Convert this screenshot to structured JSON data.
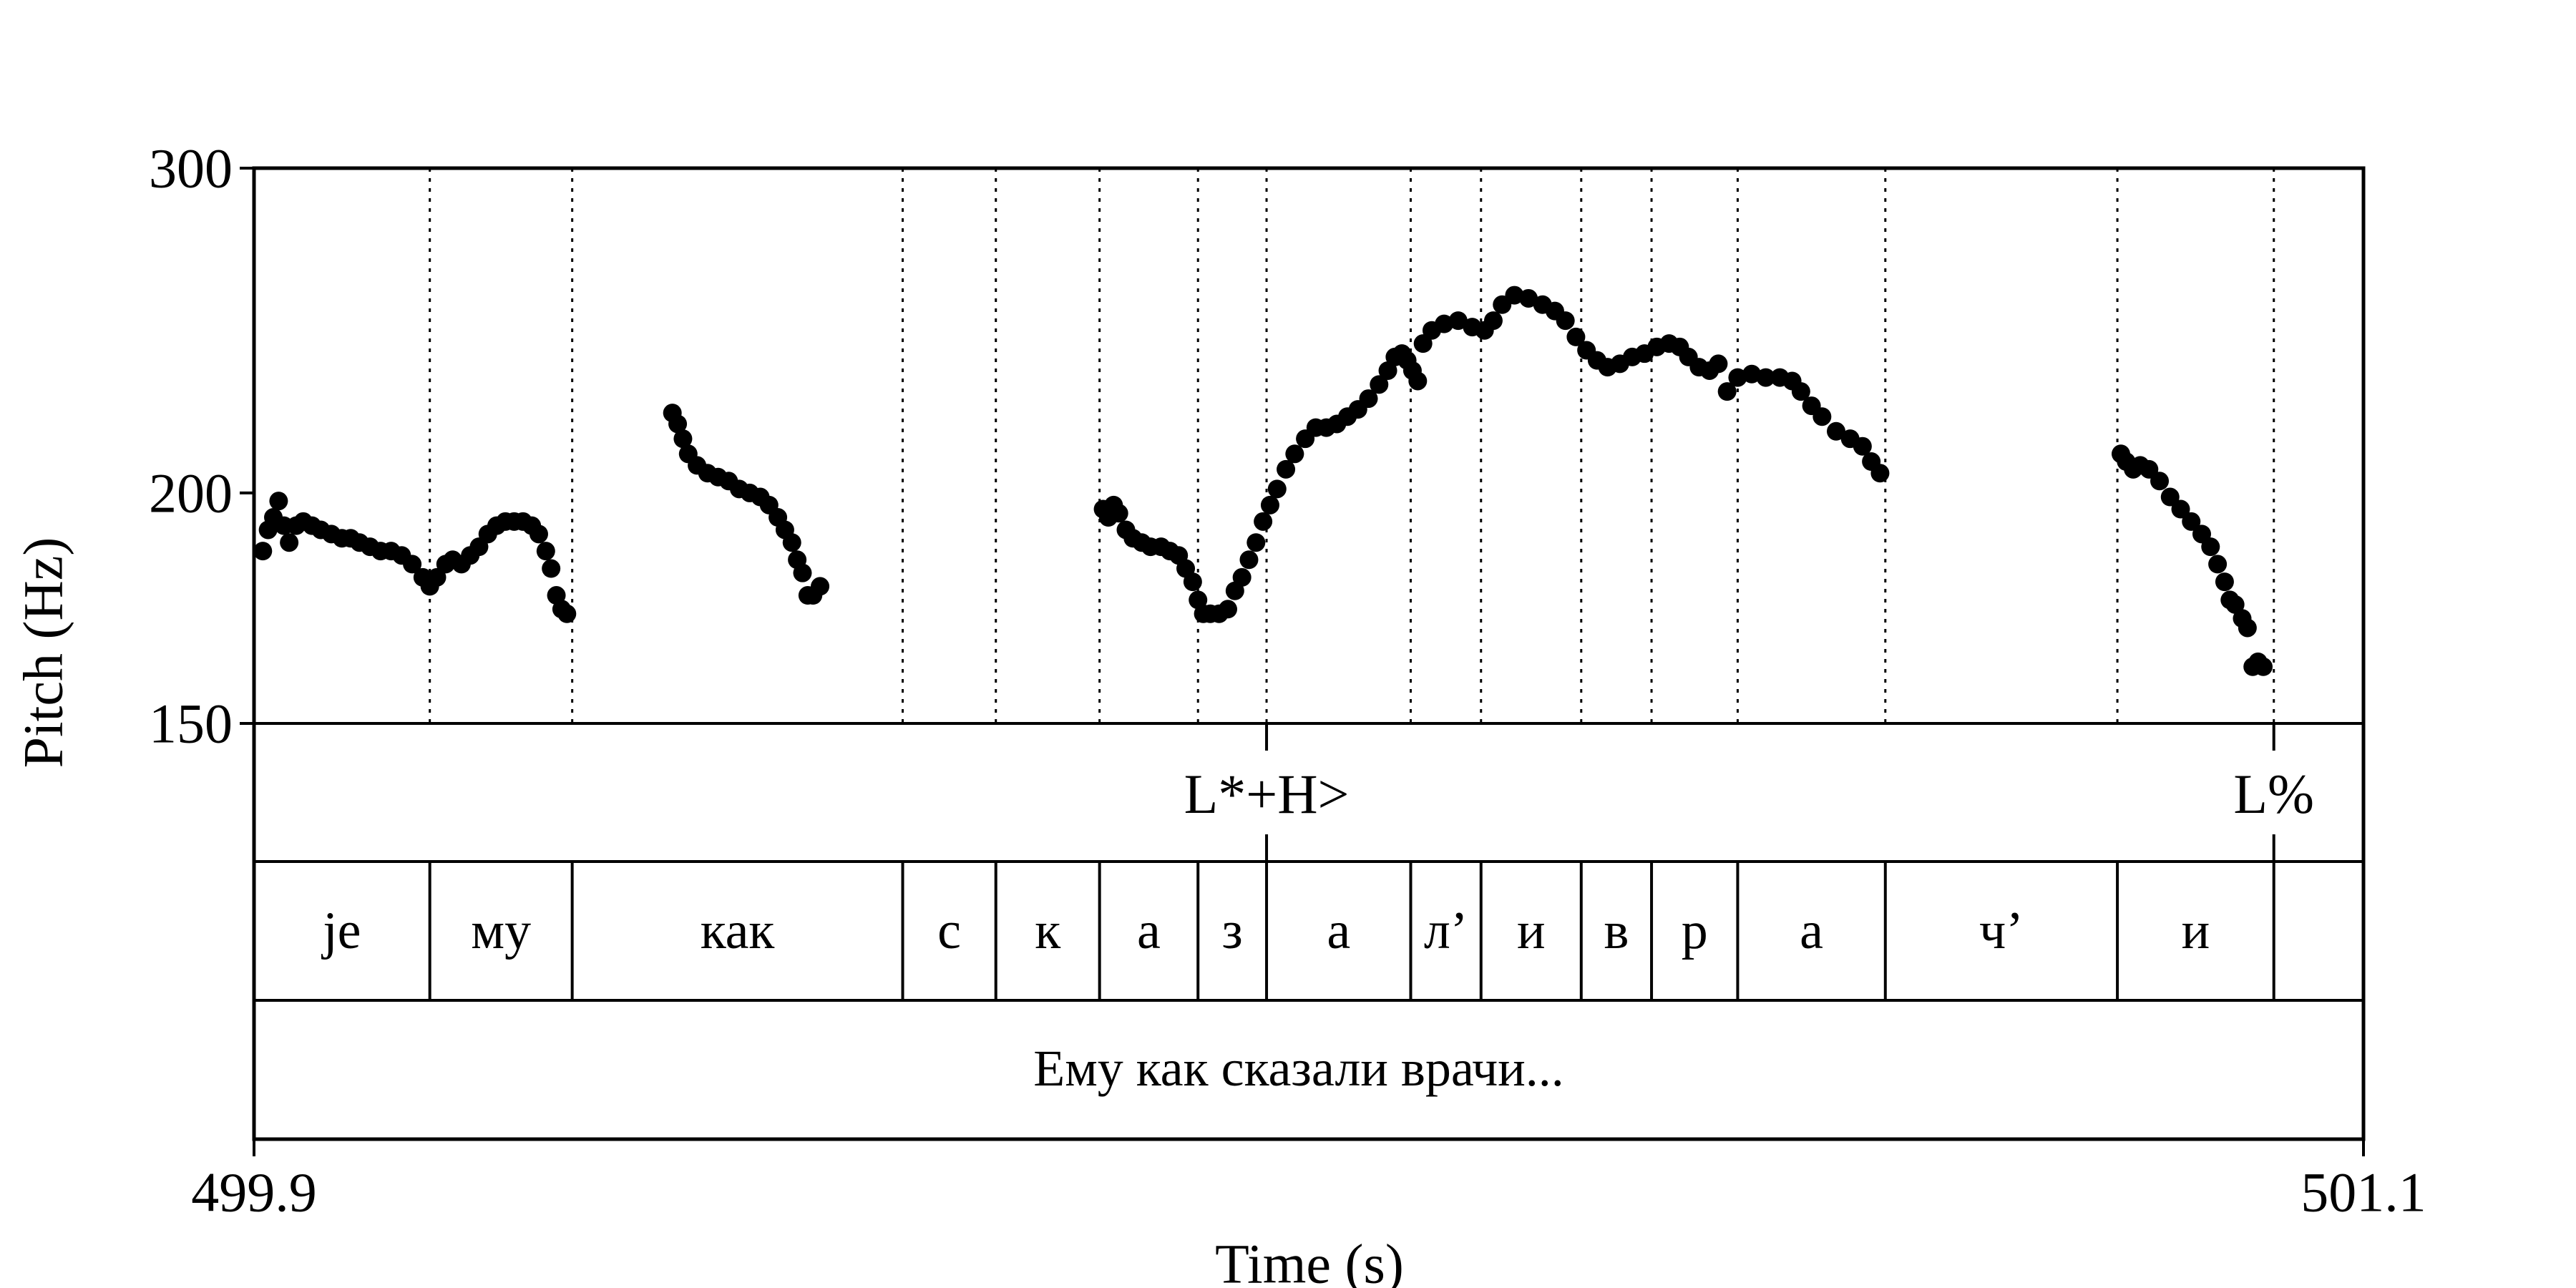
{
  "chart_data": {
    "type": "scatter",
    "title": "",
    "xlabel": "Time (s)",
    "ylabel": "Pitch (Hz)",
    "xlim": [
      499.9,
      501.1
    ],
    "ylim": [
      150,
      300
    ],
    "y_scale": "log",
    "x_tick_labels": [
      "499.9",
      "501.1"
    ],
    "y_ticks": [
      {
        "value": 300,
        "label": "300"
      },
      {
        "value": 200,
        "label": "200"
      },
      {
        "value": 150,
        "label": "150"
      }
    ],
    "boundaries": [
      500.0,
      500.081,
      500.269,
      500.322,
      500.381,
      500.437,
      500.476,
      500.558,
      500.598,
      500.655,
      500.695,
      500.744,
      500.828,
      500.96,
      501.049
    ],
    "tone_tier": [
      {
        "time": 500.476,
        "label": "L*+H>"
      },
      {
        "time": 501.049,
        "label": "L%"
      }
    ],
    "segment_tier": [
      {
        "start": 499.9,
        "end": 500.0,
        "label": "je"
      },
      {
        "start": 500.0,
        "end": 500.081,
        "label": "му"
      },
      {
        "start": 500.081,
        "end": 500.269,
        "label": "как"
      },
      {
        "start": 500.269,
        "end": 500.322,
        "label": "с"
      },
      {
        "start": 500.322,
        "end": 500.381,
        "label": "к"
      },
      {
        "start": 500.381,
        "end": 500.437,
        "label": "а"
      },
      {
        "start": 500.437,
        "end": 500.476,
        "label": "з"
      },
      {
        "start": 500.476,
        "end": 500.558,
        "label": "а"
      },
      {
        "start": 500.558,
        "end": 500.598,
        "label": "л’"
      },
      {
        "start": 500.598,
        "end": 500.655,
        "label": "и"
      },
      {
        "start": 500.655,
        "end": 500.695,
        "label": "в"
      },
      {
        "start": 500.695,
        "end": 500.744,
        "label": "р"
      },
      {
        "start": 500.744,
        "end": 500.828,
        "label": "а"
      },
      {
        "start": 500.828,
        "end": 500.96,
        "label": "ч’"
      },
      {
        "start": 500.96,
        "end": 501.049,
        "label": "и"
      },
      {
        "start": 501.049,
        "end": 501.1,
        "label": ""
      }
    ],
    "sentence_tier": {
      "label": "Ему как сказали врачи..."
    },
    "series": [
      {
        "points": [
          [
            499.905,
            186
          ],
          [
            499.908,
            191
          ],
          [
            499.911,
            194
          ],
          [
            499.914,
            198
          ],
          [
            499.917,
            192
          ],
          [
            499.92,
            188
          ],
          [
            499.924,
            192
          ],
          [
            499.928,
            193
          ],
          [
            499.933,
            192
          ],
          [
            499.938,
            191
          ],
          [
            499.944,
            190
          ],
          [
            499.95,
            189
          ],
          [
            499.955,
            189
          ],
          [
            499.96,
            188
          ],
          [
            499.966,
            187
          ],
          [
            499.972,
            186
          ],
          [
            499.978,
            186
          ],
          [
            499.984,
            185
          ],
          [
            499.99,
            183
          ],
          [
            499.996,
            180
          ],
          [
            500.0,
            178
          ],
          [
            500.004,
            180
          ],
          [
            500.009,
            183
          ],
          [
            500.013,
            184
          ],
          [
            500.018,
            183
          ],
          [
            500.023,
            185
          ],
          [
            500.028,
            187
          ],
          [
            500.033,
            190
          ],
          [
            500.038,
            192
          ],
          [
            500.043,
            193
          ],
          [
            500.048,
            193
          ],
          [
            500.053,
            193
          ],
          [
            500.058,
            192
          ],
          [
            500.062,
            190
          ],
          [
            500.066,
            186
          ],
          [
            500.069,
            182
          ],
          [
            500.072,
            176
          ],
          [
            500.075,
            173
          ],
          [
            500.078,
            172
          ]
        ]
      },
      {
        "points": [
          [
            500.138,
            221
          ],
          [
            500.141,
            218
          ],
          [
            500.144,
            214
          ],
          [
            500.147,
            210
          ],
          [
            500.152,
            207
          ],
          [
            500.158,
            205
          ],
          [
            500.164,
            204
          ],
          [
            500.17,
            203
          ],
          [
            500.176,
            201
          ],
          [
            500.182,
            200
          ],
          [
            500.188,
            199
          ],
          [
            500.193,
            197
          ],
          [
            500.198,
            194
          ],
          [
            500.202,
            191
          ],
          [
            500.206,
            188
          ],
          [
            500.209,
            184
          ],
          [
            500.212,
            181
          ],
          [
            500.215,
            176
          ],
          [
            500.218,
            176
          ],
          [
            500.222,
            178
          ]
        ]
      },
      {
        "points": [
          [
            500.383,
            196
          ],
          [
            500.386,
            194
          ],
          [
            500.389,
            197
          ],
          [
            500.392,
            195
          ],
          [
            500.396,
            191
          ],
          [
            500.4,
            189
          ],
          [
            500.405,
            188
          ],
          [
            500.41,
            187
          ],
          [
            500.416,
            187
          ],
          [
            500.421,
            186
          ],
          [
            500.426,
            185
          ],
          [
            500.43,
            182
          ],
          [
            500.434,
            179
          ],
          [
            500.437,
            175
          ],
          [
            500.44,
            172
          ],
          [
            500.444,
            172
          ],
          [
            500.449,
            172
          ],
          [
            500.454,
            173
          ],
          [
            500.458,
            177
          ],
          [
            500.462,
            180
          ],
          [
            500.466,
            184
          ],
          [
            500.47,
            188
          ],
          [
            500.474,
            193
          ],
          [
            500.478,
            197
          ],
          [
            500.482,
            201
          ],
          [
            500.487,
            206
          ],
          [
            500.492,
            210
          ],
          [
            500.498,
            214
          ],
          [
            500.504,
            217
          ],
          [
            500.51,
            217
          ],
          [
            500.516,
            218
          ],
          [
            500.522,
            220
          ],
          [
            500.528,
            222
          ],
          [
            500.534,
            225
          ],
          [
            500.54,
            229
          ],
          [
            500.545,
            233
          ],
          [
            500.549,
            237
          ],
          [
            500.553,
            238
          ],
          [
            500.556,
            236
          ],
          [
            500.559,
            233
          ],
          [
            500.562,
            230
          ],
          [
            500.565,
            241
          ],
          [
            500.57,
            245
          ],
          [
            500.577,
            247
          ],
          [
            500.585,
            248
          ],
          [
            500.593,
            246
          ],
          [
            500.6,
            245
          ],
          [
            500.605,
            248
          ],
          [
            500.61,
            253
          ],
          [
            500.617,
            256
          ],
          [
            500.625,
            255
          ],
          [
            500.633,
            253
          ],
          [
            500.64,
            251
          ],
          [
            500.646,
            248
          ],
          [
            500.652,
            243
          ],
          [
            500.658,
            239
          ],
          [
            500.664,
            236
          ],
          [
            500.67,
            234
          ],
          [
            500.677,
            235
          ],
          [
            500.684,
            237
          ],
          [
            500.691,
            238
          ],
          [
            500.698,
            240
          ],
          [
            500.705,
            241
          ],
          [
            500.711,
            240
          ],
          [
            500.716,
            237
          ],
          [
            500.722,
            234
          ],
          [
            500.728,
            233
          ],
          [
            500.733,
            235
          ],
          [
            500.738,
            227
          ],
          [
            500.744,
            231
          ],
          [
            500.752,
            232
          ],
          [
            500.76,
            231
          ],
          [
            500.768,
            231
          ],
          [
            500.775,
            230
          ],
          [
            500.78,
            227
          ],
          [
            500.786,
            223
          ],
          [
            500.792,
            220
          ],
          [
            500.8,
            216
          ],
          [
            500.808,
            214
          ],
          [
            500.815,
            212
          ],
          [
            500.82,
            208
          ],
          [
            500.825,
            205
          ]
        ]
      },
      {
        "points": [
          [
            500.962,
            210
          ],
          [
            500.965,
            208
          ],
          [
            500.969,
            206
          ],
          [
            500.973,
            207
          ],
          [
            500.978,
            206
          ],
          [
            500.984,
            203
          ],
          [
            500.99,
            199
          ],
          [
            500.996,
            196
          ],
          [
            501.002,
            193
          ],
          [
            501.008,
            190
          ],
          [
            501.013,
            187
          ],
          [
            501.017,
            183
          ],
          [
            501.021,
            179
          ],
          [
            501.024,
            175
          ],
          [
            501.027,
            174
          ],
          [
            501.031,
            171
          ],
          [
            501.034,
            169
          ],
          [
            501.037,
            161
          ],
          [
            501.04,
            162
          ],
          [
            501.043,
            161
          ]
        ]
      }
    ]
  }
}
